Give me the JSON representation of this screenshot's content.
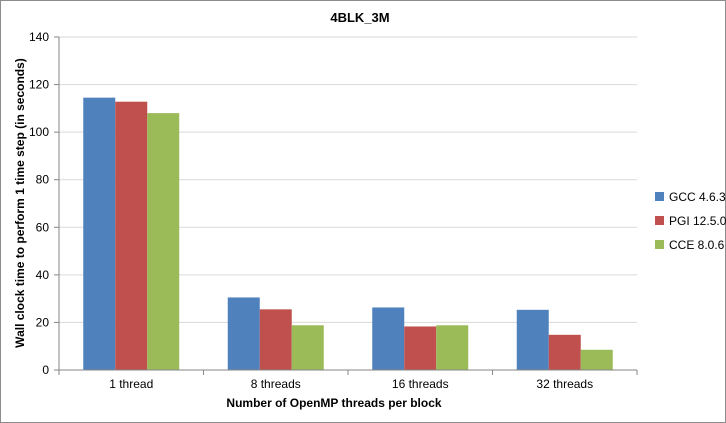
{
  "chart_data": {
    "type": "bar",
    "title": "4BLK_3M",
    "xlabel": "Number of OpenMP threads per block",
    "ylabel": "Wall clock time to perform 1 time step (in seconds)",
    "ylim": [
      0,
      140
    ],
    "yticks": [
      0,
      20,
      40,
      60,
      80,
      100,
      120,
      140
    ],
    "grid": true,
    "legend_position": "right",
    "categories": [
      "1 thread",
      "8 threads",
      "16 threads",
      "32 threads"
    ],
    "series": [
      {
        "name": "GCC 4.6.3",
        "color": "#4f81bd",
        "values": [
          114.5,
          30.5,
          26.3,
          25.3
        ]
      },
      {
        "name": "PGI 12.5.0",
        "color": "#c0504d",
        "values": [
          112.8,
          25.5,
          18.3,
          14.8
        ]
      },
      {
        "name": "CCE 8.0.6",
        "color": "#9bbb59",
        "values": [
          108.0,
          18.8,
          18.8,
          8.5
        ]
      }
    ]
  }
}
